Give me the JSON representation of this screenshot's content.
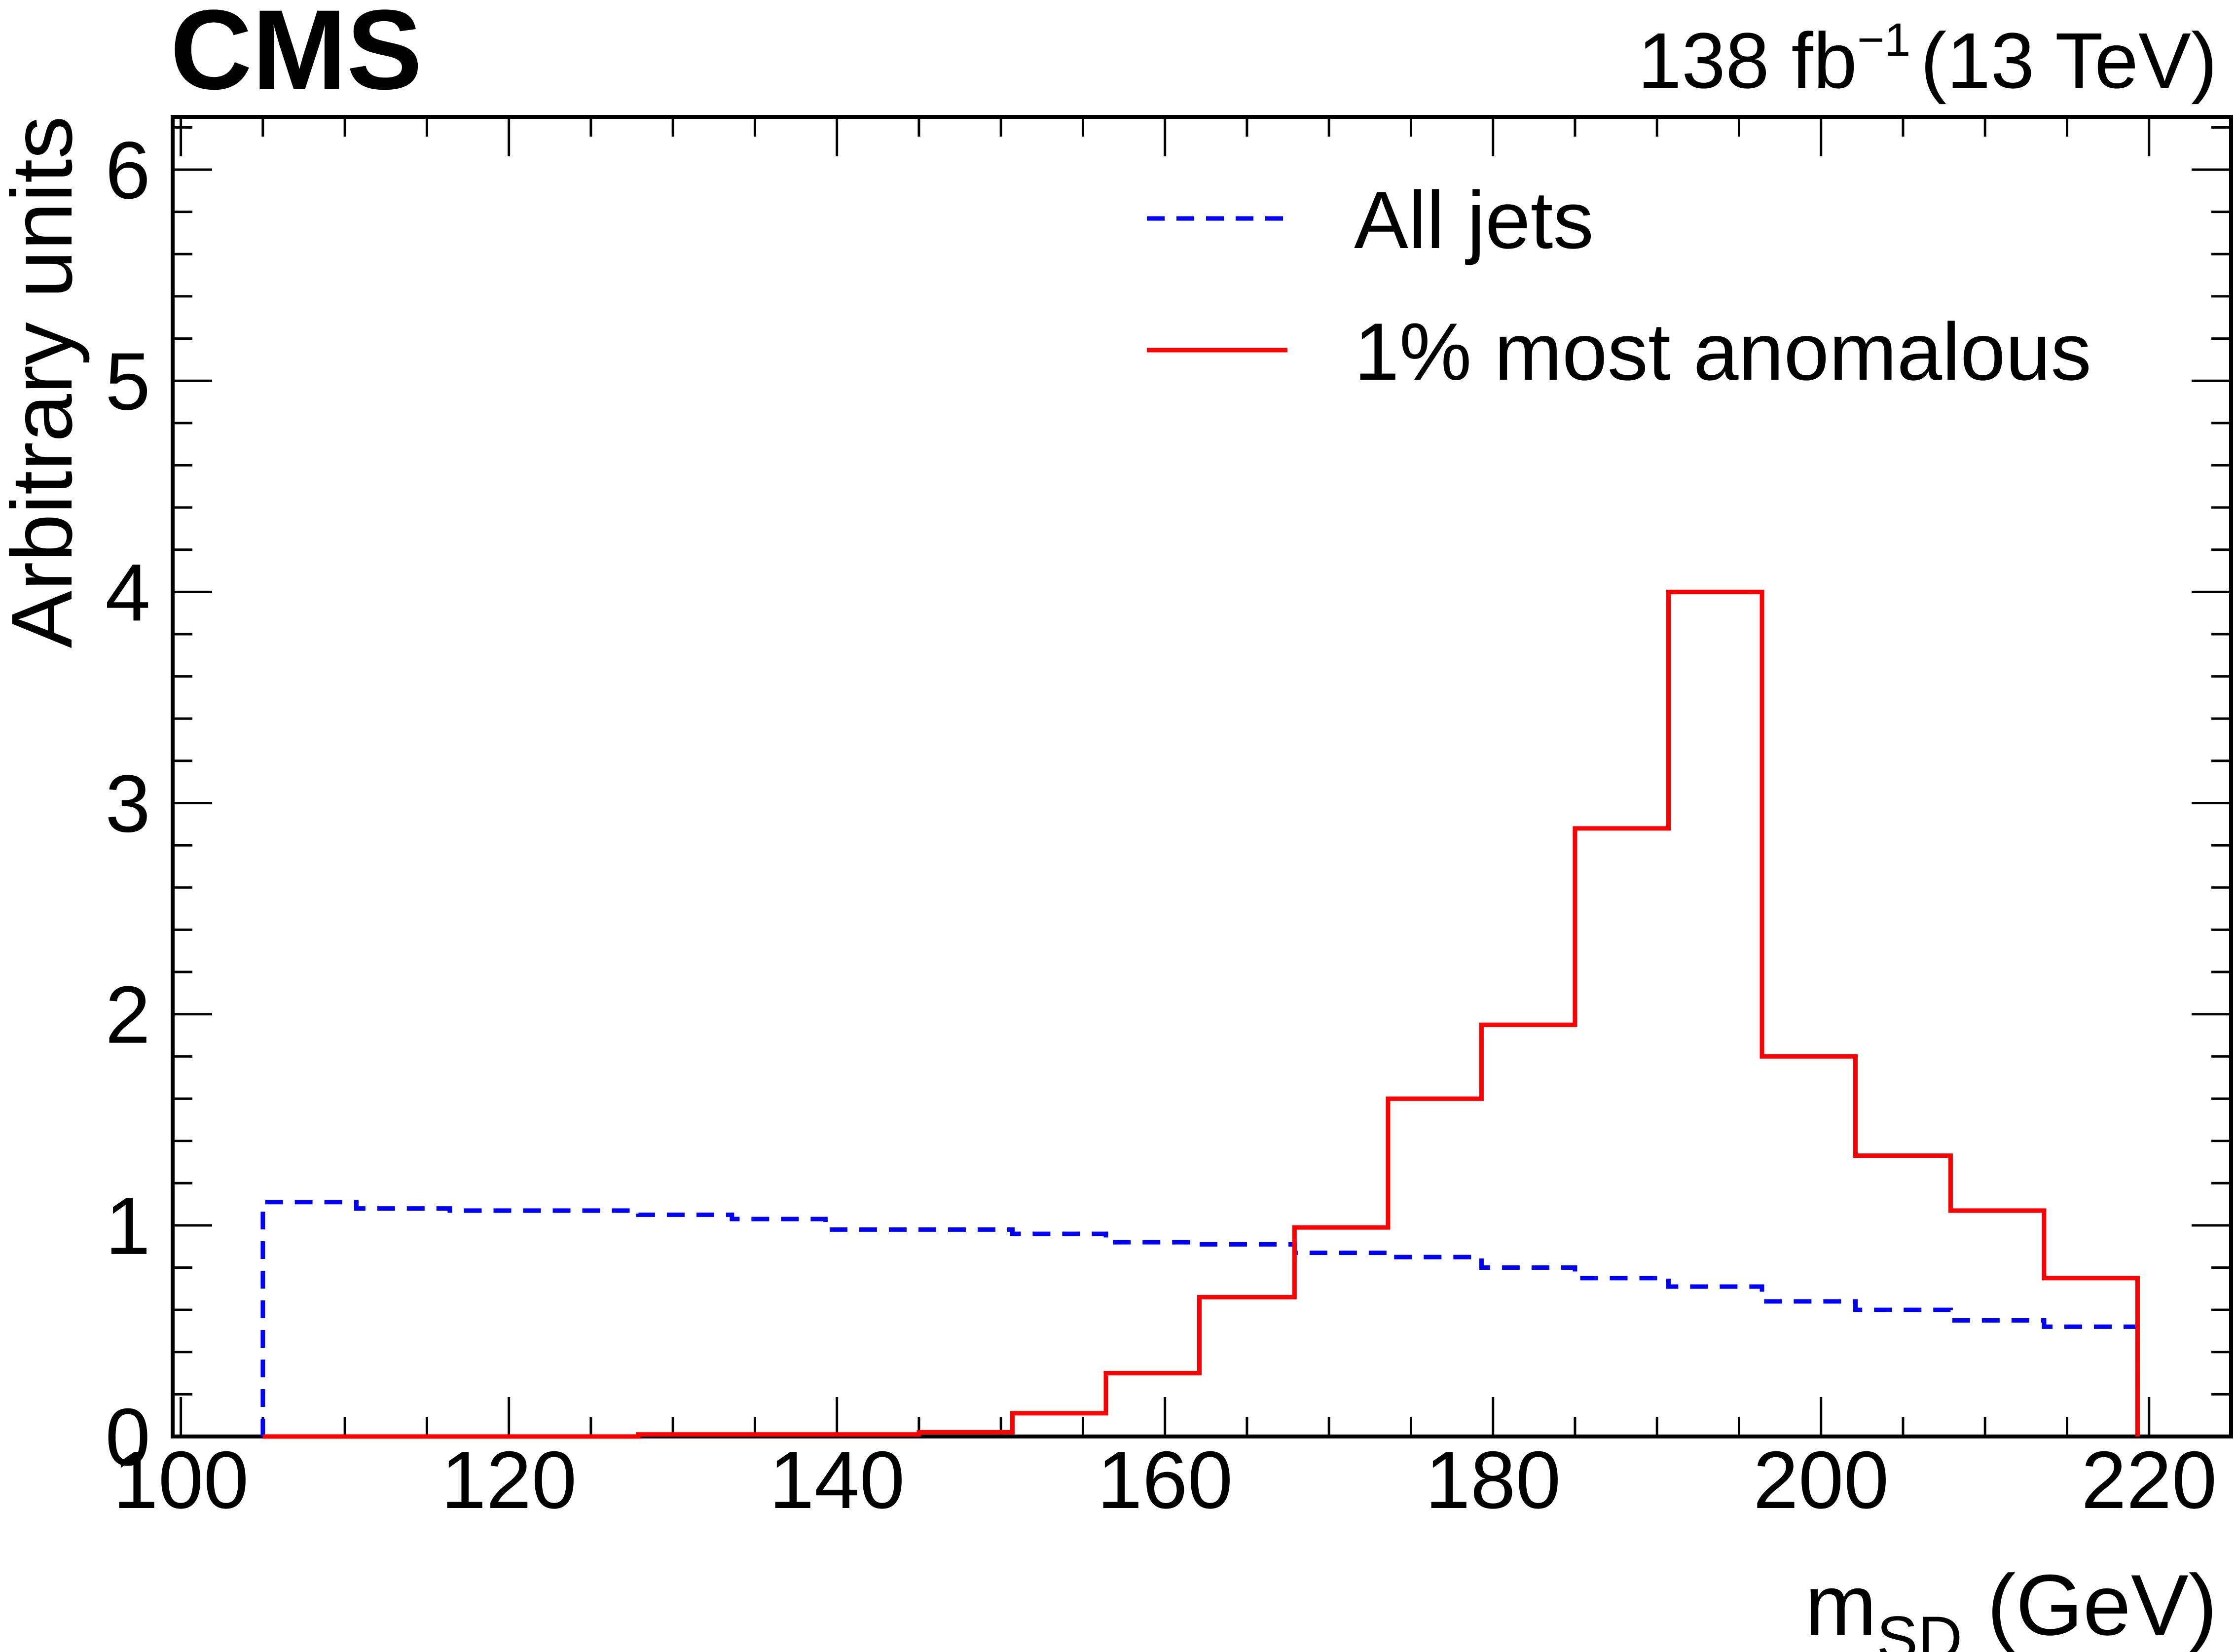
{
  "header": {
    "experiment": "CMS",
    "lumi": "138 fb",
    "lumi_exp": "−1",
    "energy": "(13 TeV)"
  },
  "chart_data": {
    "type": "line",
    "subtype": "step-histogram",
    "xlabel_main": "m",
    "xlabel_sub": "SD",
    "xlabel_unit": "(GeV)",
    "ylabel": "Arbitrary units",
    "xlim": [
      99.5,
      225
    ],
    "ylim": [
      0,
      6.25
    ],
    "xticks": [
      100,
      120,
      140,
      160,
      180,
      200,
      220
    ],
    "yticks": [
      0,
      1,
      2,
      3,
      4,
      5,
      6
    ],
    "grid": false,
    "legend_position": "top-right",
    "bin_edges": [
      105,
      110.7,
      116.4,
      122.1,
      127.9,
      133.6,
      139.3,
      145.0,
      150.7,
      156.4,
      162.1,
      167.9,
      173.6,
      179.3,
      185.0,
      190.7,
      196.4,
      202.1,
      207.9,
      213.6,
      219.3
    ],
    "series": [
      {
        "name": "All jets",
        "color": "#0000ff",
        "style": "dashed",
        "values": [
          1.11,
          1.08,
          1.07,
          1.07,
          1.05,
          1.03,
          0.98,
          0.98,
          0.96,
          0.92,
          0.91,
          0.87,
          0.85,
          0.8,
          0.75,
          0.71,
          0.64,
          0.6,
          0.55,
          0.52
        ]
      },
      {
        "name": "1% most anomalous",
        "color": "#ff0000",
        "style": "solid",
        "values": [
          0.0,
          0.0,
          0.0,
          0.0,
          0.01,
          0.01,
          0.01,
          0.02,
          0.11,
          0.3,
          0.66,
          0.99,
          1.6,
          1.95,
          2.88,
          4.0,
          1.8,
          1.33,
          1.07,
          0.75
        ]
      }
    ]
  }
}
